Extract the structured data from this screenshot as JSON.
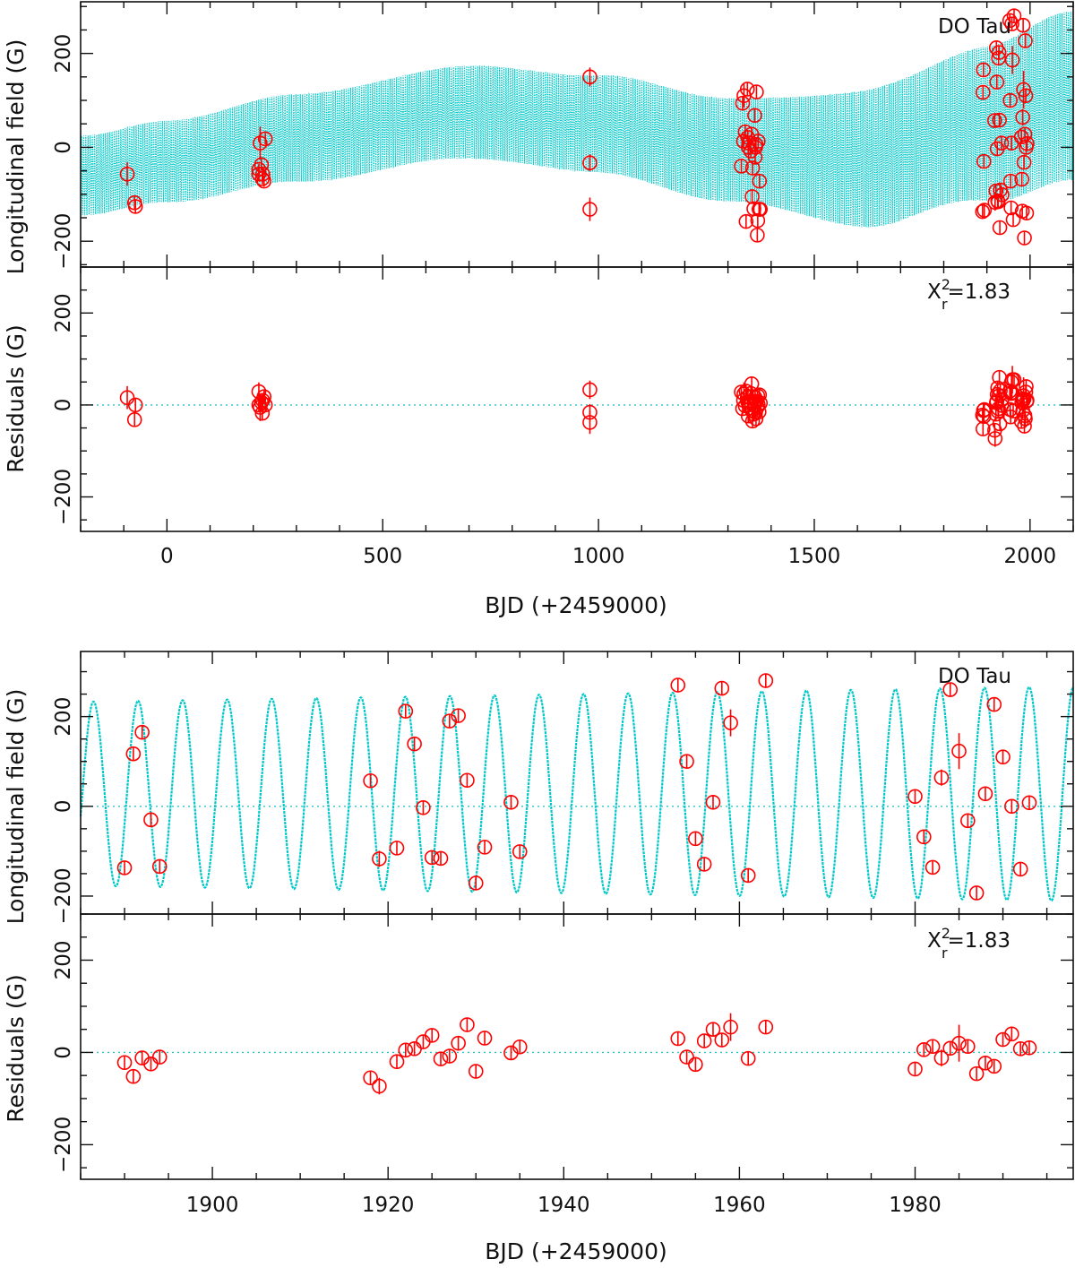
{
  "chart_data": [
    {
      "type": "scatter",
      "id": "full-baseline",
      "annotation": "DO Tau",
      "chi2_label": {
        "base": "X",
        "sup": "2",
        "sub": "r",
        "value": "=1.83"
      },
      "xlabel": "BJD (+2459000)",
      "xlim": [
        -200,
        2100
      ],
      "xticks": [
        0,
        500,
        1000,
        1500,
        2000
      ],
      "xtick_labels": [
        "0",
        "500",
        "1000",
        "1500",
        "2000"
      ],
      "top_panel": {
        "ylabel": "Longitudinal field (G)",
        "ylim": [
          -255,
          310
        ],
        "yticks": [
          -200,
          0,
          200
        ],
        "ytick_labels": [
          "−200",
          "0",
          "200"
        ],
        "model": {
          "color": "#00c8c8",
          "form": "trend plus 14.36 d sinusoid (dense band)",
          "trend_knots": {
            "x": [
              -200,
              0,
              300,
              700,
              1000,
              1300,
              1600,
              1900,
              2100
            ],
            "y": [
              -60,
              -30,
              20,
              75,
              50,
              -5,
              -25,
              50,
              110
            ]
          },
          "amplitude_knots": {
            "x": [
              -200,
              500,
              800,
              1300,
              1700,
              2100
            ],
            "y": [
              85,
              95,
              100,
              110,
              150,
              180
            ]
          }
        },
        "points": {
          "color": "#ff0000",
          "x": [
            -92,
            -75,
            -73,
            213,
            213,
            216,
            219,
            221,
            222,
            225,
            228,
            980,
            980,
            980,
            1331,
            1334,
            1336,
            1337,
            1340,
            1342,
            1345,
            1346,
            1347,
            1348,
            1353,
            1355,
            1356,
            1357,
            1360,
            1362,
            1363,
            1364,
            1365,
            1366,
            1368,
            1369,
            1370,
            1372,
            1373,
            1375,
            1890,
            1891,
            1892,
            1893,
            1894,
            1918,
            1919,
            1921,
            1922,
            1923,
            1924,
            1925,
            1926,
            1927,
            1928,
            1929,
            1930,
            1931,
            1934,
            1935,
            1953,
            1954,
            1955,
            1956,
            1957,
            1958,
            1959,
            1961,
            1963,
            1980,
            1981,
            1982,
            1983,
            1984,
            1985,
            1986,
            1987,
            1988,
            1989,
            1990,
            1991,
            1992,
            1993
          ],
          "y": [
            -57,
            -118,
            -126,
            -57,
            -47,
            9,
            -37,
            -67,
            -57,
            -72,
            18,
            150,
            -33,
            -132,
            -40,
            94,
            13,
            110,
            33,
            -158,
            124,
            21,
            0,
            9,
            -8,
            28,
            -105,
            -44,
            -131,
            68,
            -21,
            0,
            6,
            118,
            -187,
            -156,
            13,
            -132,
            -72,
            -132,
            -137,
            117,
            165,
            -30,
            -134,
            57,
            -117,
            -93,
            212,
            139,
            -3,
            -114,
            -116,
            190,
            202,
            58,
            -171,
            -91,
            9,
            -101,
            270,
            100,
            -72,
            -129,
            9,
            263,
            186,
            -154,
            280,
            22,
            -68,
            -136,
            64,
            260,
            123,
            -32,
            -193,
            28,
            227,
            110,
            0,
            -140,
            8
          ],
          "yerr": [
            25,
            14,
            14,
            12,
            12,
            35,
            12,
            12,
            12,
            12,
            12,
            20,
            18,
            25,
            14,
            14,
            14,
            25,
            14,
            14,
            14,
            14,
            14,
            14,
            14,
            14,
            14,
            14,
            14,
            14,
            14,
            14,
            14,
            14,
            14,
            14,
            14,
            14,
            14,
            14,
            14,
            14,
            14,
            14,
            14,
            14,
            18,
            14,
            14,
            14,
            14,
            14,
            14,
            14,
            14,
            14,
            14,
            14,
            14,
            14,
            14,
            14,
            14,
            14,
            14,
            14,
            30,
            14,
            14,
            14,
            14,
            14,
            18,
            14,
            40,
            14,
            14,
            14,
            14,
            14,
            14,
            14,
            14
          ]
        }
      },
      "bottom_panel": {
        "ylabel": "Residuals (G)",
        "ylim": [
          -275,
          300
        ],
        "yticks": [
          -200,
          0,
          200
        ],
        "ytick_labels": [
          "−200",
          "0",
          "200"
        ],
        "points": {
          "color": "#ff0000",
          "x": [
            -92,
            -75,
            -73,
            213,
            213,
            216,
            219,
            221,
            222,
            225,
            228,
            980,
            980,
            980,
            1331,
            1334,
            1336,
            1337,
            1340,
            1342,
            1345,
            1346,
            1347,
            1348,
            1353,
            1355,
            1356,
            1357,
            1360,
            1362,
            1363,
            1364,
            1365,
            1366,
            1368,
            1369,
            1370,
            1372,
            1373,
            1375,
            1890,
            1891,
            1892,
            1893,
            1894,
            1918,
            1919,
            1921,
            1922,
            1923,
            1924,
            1925,
            1926,
            1927,
            1928,
            1929,
            1930,
            1931,
            1934,
            1935,
            1953,
            1954,
            1955,
            1956,
            1957,
            1958,
            1959,
            1961,
            1963,
            1980,
            1981,
            1982,
            1983,
            1984,
            1985,
            1986,
            1987,
            1988,
            1989,
            1990,
            1991,
            1992,
            1993
          ],
          "y": [
            16,
            -32,
            0,
            29,
            0,
            -5,
            6,
            -18,
            10,
            18,
            0,
            33,
            -16,
            -38,
            28,
            -8,
            10,
            24,
            -2,
            30,
            17,
            6,
            -24,
            0,
            25,
            46,
            -13,
            -35,
            -20,
            0,
            16,
            -16,
            -30,
            8,
            -5,
            20,
            1,
            -15,
            22,
            4,
            -22,
            -52,
            -12,
            -25,
            -10,
            -55,
            -73,
            -20,
            5,
            8,
            23,
            37,
            -14,
            -8,
            20,
            60,
            -41,
            31,
            -1,
            12,
            30,
            -10,
            -26,
            25,
            50,
            27,
            55,
            -13,
            55,
            -36,
            6,
            13,
            -12,
            9,
            20,
            13,
            -46,
            -23,
            -30,
            28,
            40,
            8,
            10
          ],
          "yerr": [
            25,
            14,
            14,
            20,
            14,
            30,
            14,
            14,
            14,
            14,
            14,
            20,
            18,
            25,
            14,
            14,
            14,
            25,
            14,
            14,
            14,
            14,
            14,
            14,
            14,
            14,
            14,
            14,
            14,
            14,
            14,
            14,
            14,
            14,
            14,
            14,
            14,
            14,
            14,
            14,
            14,
            14,
            14,
            14,
            14,
            14,
            18,
            14,
            14,
            14,
            14,
            14,
            14,
            14,
            14,
            14,
            14,
            14,
            14,
            14,
            14,
            14,
            14,
            14,
            14,
            14,
            30,
            14,
            14,
            14,
            14,
            14,
            18,
            14,
            40,
            14,
            14,
            14,
            14,
            14,
            14,
            14,
            14
          ]
        }
      }
    },
    {
      "type": "scatter",
      "id": "zoom-last-season",
      "annotation": "DO Tau",
      "chi2_label": {
        "base": "X",
        "sup": "2",
        "sub": "r",
        "value": "=1.83"
      },
      "xlabel": "BJD (+2459000)",
      "xlim": [
        1885,
        1998
      ],
      "xticks": [
        1900,
        1920,
        1940,
        1960,
        1980
      ],
      "xtick_labels": [
        "1900",
        "1920",
        "1940",
        "1960",
        "1980"
      ],
      "top_panel": {
        "ylabel": "Longitudinal field (G)",
        "ylim": [
          -240,
          345
        ],
        "yticks": [
          -200,
          0,
          200
        ],
        "ytick_labels": [
          "−200",
          "0",
          "200"
        ],
        "model": {
          "color": "#00c8c8",
          "form": "offset + amplitude * sin(2*pi*(x - t0)/period)",
          "period": 5.072,
          "t0": 1885.2,
          "offset": 28,
          "amplitude": 205,
          "amp_drift_per_day": 0.3
        },
        "points": {
          "color": "#ff0000",
          "x": [
            1890,
            1891,
            1892,
            1893,
            1894,
            1918,
            1919,
            1921,
            1922,
            1923,
            1924,
            1925,
            1926,
            1927,
            1928,
            1929,
            1930,
            1931,
            1934,
            1935,
            1953,
            1954,
            1955,
            1956,
            1957,
            1958,
            1959,
            1961,
            1963,
            1980,
            1981,
            1982,
            1983,
            1984,
            1985,
            1986,
            1987,
            1988,
            1989,
            1990,
            1991,
            1992,
            1993
          ],
          "y": [
            -137,
            117,
            165,
            -30,
            -134,
            57,
            -117,
            -93,
            212,
            139,
            -3,
            -114,
            -116,
            190,
            202,
            58,
            -171,
            -91,
            9,
            -101,
            270,
            100,
            -72,
            -129,
            9,
            263,
            186,
            -154,
            280,
            22,
            -68,
            -136,
            64,
            260,
            123,
            -32,
            -193,
            28,
            227,
            110,
            0,
            -140,
            8
          ],
          "yerr": [
            14,
            14,
            14,
            14,
            14,
            14,
            18,
            14,
            14,
            14,
            14,
            14,
            14,
            14,
            14,
            14,
            14,
            14,
            14,
            14,
            14,
            14,
            14,
            14,
            14,
            14,
            30,
            14,
            14,
            14,
            14,
            14,
            18,
            14,
            40,
            14,
            14,
            14,
            14,
            14,
            14,
            14,
            14
          ]
        }
      },
      "bottom_panel": {
        "ylabel": "Residuals (G)",
        "ylim": [
          -275,
          300
        ],
        "yticks": [
          -200,
          0,
          200
        ],
        "ytick_labels": [
          "−200",
          "0",
          "200"
        ],
        "points": {
          "color": "#ff0000",
          "x": [
            1890,
            1891,
            1892,
            1893,
            1894,
            1918,
            1919,
            1921,
            1922,
            1923,
            1924,
            1925,
            1926,
            1927,
            1928,
            1929,
            1930,
            1931,
            1934,
            1935,
            1953,
            1954,
            1955,
            1956,
            1957,
            1958,
            1959,
            1961,
            1963,
            1980,
            1981,
            1982,
            1983,
            1984,
            1985,
            1986,
            1987,
            1988,
            1989,
            1990,
            1991,
            1992,
            1993
          ],
          "y": [
            -22,
            -52,
            -12,
            -25,
            -10,
            -55,
            -73,
            -20,
            5,
            8,
            23,
            37,
            -14,
            -8,
            20,
            60,
            -41,
            31,
            -1,
            12,
            30,
            -10,
            -26,
            25,
            50,
            27,
            55,
            -13,
            55,
            -36,
            6,
            13,
            -12,
            9,
            20,
            13,
            -46,
            -23,
            -30,
            28,
            40,
            8,
            10
          ],
          "yerr": [
            14,
            14,
            14,
            14,
            14,
            14,
            18,
            14,
            14,
            14,
            14,
            14,
            14,
            14,
            14,
            14,
            14,
            14,
            14,
            14,
            14,
            14,
            14,
            14,
            14,
            14,
            30,
            14,
            14,
            14,
            14,
            14,
            18,
            14,
            40,
            14,
            14,
            14,
            14,
            14,
            14,
            14,
            14
          ]
        }
      }
    }
  ]
}
